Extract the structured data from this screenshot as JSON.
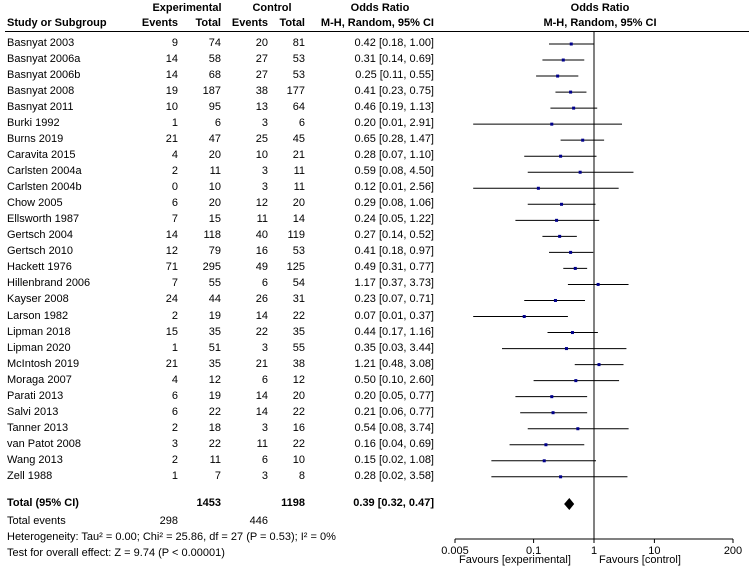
{
  "headers": {
    "study": "Study or Subgroup",
    "experimental": "Experimental",
    "control": "Control",
    "events": "Events",
    "total": "Total",
    "or_title": "Odds Ratio",
    "or_method": "M-H, Random, 95% CI"
  },
  "studies": [
    {
      "name": "Basnyat 2003",
      "exp_events": "9",
      "exp_total": "74",
      "ctl_events": "20",
      "ctl_total": "81",
      "ci_text": "0.42 [0.18, 1.00]",
      "or": 0.42,
      "lo": 0.18,
      "hi": 1.0
    },
    {
      "name": "Basnyat 2006a",
      "exp_events": "14",
      "exp_total": "58",
      "ctl_events": "27",
      "ctl_total": "53",
      "ci_text": "0.31 [0.14, 0.69]",
      "or": 0.31,
      "lo": 0.14,
      "hi": 0.69
    },
    {
      "name": "Basnyat 2006b",
      "exp_events": "14",
      "exp_total": "68",
      "ctl_events": "27",
      "ctl_total": "53",
      "ci_text": "0.25 [0.11, 0.55]",
      "or": 0.25,
      "lo": 0.11,
      "hi": 0.55
    },
    {
      "name": "Basnyat 2008",
      "exp_events": "19",
      "exp_total": "187",
      "ctl_events": "38",
      "ctl_total": "177",
      "ci_text": "0.41 [0.23, 0.75]",
      "or": 0.41,
      "lo": 0.23,
      "hi": 0.75
    },
    {
      "name": "Basnyat 2011",
      "exp_events": "10",
      "exp_total": "95",
      "ctl_events": "13",
      "ctl_total": "64",
      "ci_text": "0.46 [0.19, 1.13]",
      "or": 0.46,
      "lo": 0.19,
      "hi": 1.13
    },
    {
      "name": "Burki 1992",
      "exp_events": "1",
      "exp_total": "6",
      "ctl_events": "3",
      "ctl_total": "6",
      "ci_text": "0.20 [0.01, 2.91]",
      "or": 0.2,
      "lo": 0.01,
      "hi": 2.91
    },
    {
      "name": "Burns 2019",
      "exp_events": "21",
      "exp_total": "47",
      "ctl_events": "25",
      "ctl_total": "45",
      "ci_text": "0.65 [0.28, 1.47]",
      "or": 0.65,
      "lo": 0.28,
      "hi": 1.47
    },
    {
      "name": "Caravita 2015",
      "exp_events": "4",
      "exp_total": "20",
      "ctl_events": "10",
      "ctl_total": "21",
      "ci_text": "0.28 [0.07, 1.10]",
      "or": 0.28,
      "lo": 0.07,
      "hi": 1.1
    },
    {
      "name": "Carlsten 2004a",
      "exp_events": "2",
      "exp_total": "11",
      "ctl_events": "3",
      "ctl_total": "11",
      "ci_text": "0.59 [0.08, 4.50]",
      "or": 0.59,
      "lo": 0.08,
      "hi": 4.5
    },
    {
      "name": "Carlsten 2004b",
      "exp_events": "0",
      "exp_total": "10",
      "ctl_events": "3",
      "ctl_total": "11",
      "ci_text": "0.12 [0.01, 2.56]",
      "or": 0.12,
      "lo": 0.01,
      "hi": 2.56
    },
    {
      "name": "Chow 2005",
      "exp_events": "6",
      "exp_total": "20",
      "ctl_events": "12",
      "ctl_total": "20",
      "ci_text": "0.29 [0.08, 1.06]",
      "or": 0.29,
      "lo": 0.08,
      "hi": 1.06
    },
    {
      "name": "Ellsworth 1987",
      "exp_events": "7",
      "exp_total": "15",
      "ctl_events": "11",
      "ctl_total": "14",
      "ci_text": "0.24 [0.05, 1.22]",
      "or": 0.24,
      "lo": 0.05,
      "hi": 1.22
    },
    {
      "name": "Gertsch 2004",
      "exp_events": "14",
      "exp_total": "118",
      "ctl_events": "40",
      "ctl_total": "119",
      "ci_text": "0.27 [0.14, 0.52]",
      "or": 0.27,
      "lo": 0.14,
      "hi": 0.52
    },
    {
      "name": "Gertsch 2010",
      "exp_events": "12",
      "exp_total": "79",
      "ctl_events": "16",
      "ctl_total": "53",
      "ci_text": "0.41 [0.18, 0.97]",
      "or": 0.41,
      "lo": 0.18,
      "hi": 0.97
    },
    {
      "name": "Hackett 1976",
      "exp_events": "71",
      "exp_total": "295",
      "ctl_events": "49",
      "ctl_total": "125",
      "ci_text": "0.49 [0.31, 0.77]",
      "or": 0.49,
      "lo": 0.31,
      "hi": 0.77
    },
    {
      "name": "Hillenbrand 2006",
      "exp_events": "7",
      "exp_total": "55",
      "ctl_events": "6",
      "ctl_total": "54",
      "ci_text": "1.17 [0.37, 3.73]",
      "or": 1.17,
      "lo": 0.37,
      "hi": 3.73
    },
    {
      "name": "Kayser 2008",
      "exp_events": "24",
      "exp_total": "44",
      "ctl_events": "26",
      "ctl_total": "31",
      "ci_text": "0.23 [0.07, 0.71]",
      "or": 0.23,
      "lo": 0.07,
      "hi": 0.71
    },
    {
      "name": "Larson 1982",
      "exp_events": "2",
      "exp_total": "19",
      "ctl_events": "14",
      "ctl_total": "22",
      "ci_text": "0.07 [0.01, 0.37]",
      "or": 0.07,
      "lo": 0.01,
      "hi": 0.37
    },
    {
      "name": "Lipman 2018",
      "exp_events": "15",
      "exp_total": "35",
      "ctl_events": "22",
      "ctl_total": "35",
      "ci_text": "0.44 [0.17, 1.16]",
      "or": 0.44,
      "lo": 0.17,
      "hi": 1.16
    },
    {
      "name": "Lipman 2020",
      "exp_events": "1",
      "exp_total": "51",
      "ctl_events": "3",
      "ctl_total": "55",
      "ci_text": "0.35 [0.03, 3.44]",
      "or": 0.35,
      "lo": 0.03,
      "hi": 3.44
    },
    {
      "name": "McIntosh 2019",
      "exp_events": "21",
      "exp_total": "35",
      "ctl_events": "21",
      "ctl_total": "38",
      "ci_text": "1.21 [0.48, 3.08]",
      "or": 1.21,
      "lo": 0.48,
      "hi": 3.08
    },
    {
      "name": "Moraga 2007",
      "exp_events": "4",
      "exp_total": "12",
      "ctl_events": "6",
      "ctl_total": "12",
      "ci_text": "0.50 [0.10, 2.60]",
      "or": 0.5,
      "lo": 0.1,
      "hi": 2.6
    },
    {
      "name": "Parati 2013",
      "exp_events": "6",
      "exp_total": "19",
      "ctl_events": "14",
      "ctl_total": "20",
      "ci_text": "0.20 [0.05, 0.77]",
      "or": 0.2,
      "lo": 0.05,
      "hi": 0.77
    },
    {
      "name": "Salvi 2013",
      "exp_events": "6",
      "exp_total": "22",
      "ctl_events": "14",
      "ctl_total": "22",
      "ci_text": "0.21 [0.06, 0.77]",
      "or": 0.21,
      "lo": 0.06,
      "hi": 0.77
    },
    {
      "name": "Tanner 2013",
      "exp_events": "2",
      "exp_total": "18",
      "ctl_events": "3",
      "ctl_total": "16",
      "ci_text": "0.54 [0.08, 3.74]",
      "or": 0.54,
      "lo": 0.08,
      "hi": 3.74
    },
    {
      "name": "van Patot 2008",
      "exp_events": "3",
      "exp_total": "22",
      "ctl_events": "11",
      "ctl_total": "22",
      "ci_text": "0.16 [0.04, 0.69]",
      "or": 0.16,
      "lo": 0.04,
      "hi": 0.69
    },
    {
      "name": "Wang 2013",
      "exp_events": "2",
      "exp_total": "11",
      "ctl_events": "6",
      "ctl_total": "10",
      "ci_text": "0.15 [0.02, 1.08]",
      "or": 0.15,
      "lo": 0.02,
      "hi": 1.08
    },
    {
      "name": "Zell 1988",
      "exp_events": "1",
      "exp_total": "7",
      "ctl_events": "3",
      "ctl_total": "8",
      "ci_text": "0.28 [0.02, 3.58]",
      "or": 0.28,
      "lo": 0.02,
      "hi": 3.58
    }
  ],
  "total": {
    "label": "Total (95% CI)",
    "exp_total": "1453",
    "ctl_total": "1198",
    "ci_text": "0.39 [0.32, 0.47]",
    "or": 0.39,
    "lo": 0.32,
    "hi": 0.47
  },
  "total_events": {
    "label": "Total events",
    "exp": "298",
    "ctl": "446"
  },
  "heterogeneity": "Heterogeneity: Tau² = 0.00; Chi² = 25.86, df = 27 (P = 0.53); I² = 0%",
  "overall_effect": "Test for overall effect: Z = 9.74 (P < 0.00001)",
  "chart_data": {
    "type": "forest",
    "scale": "log",
    "xlim": [
      0.005,
      200
    ],
    "ticks": [
      0.005,
      0.1,
      1,
      10,
      200
    ],
    "tick_labels": [
      "0.005",
      "0.1",
      "1",
      "10",
      "200"
    ],
    "null_line": 1,
    "favours_left": "Favours [experimental]",
    "favours_right": "Favours [control]",
    "colors": {
      "square": "#00008b",
      "line": "#000000",
      "diamond": "#000000"
    }
  }
}
